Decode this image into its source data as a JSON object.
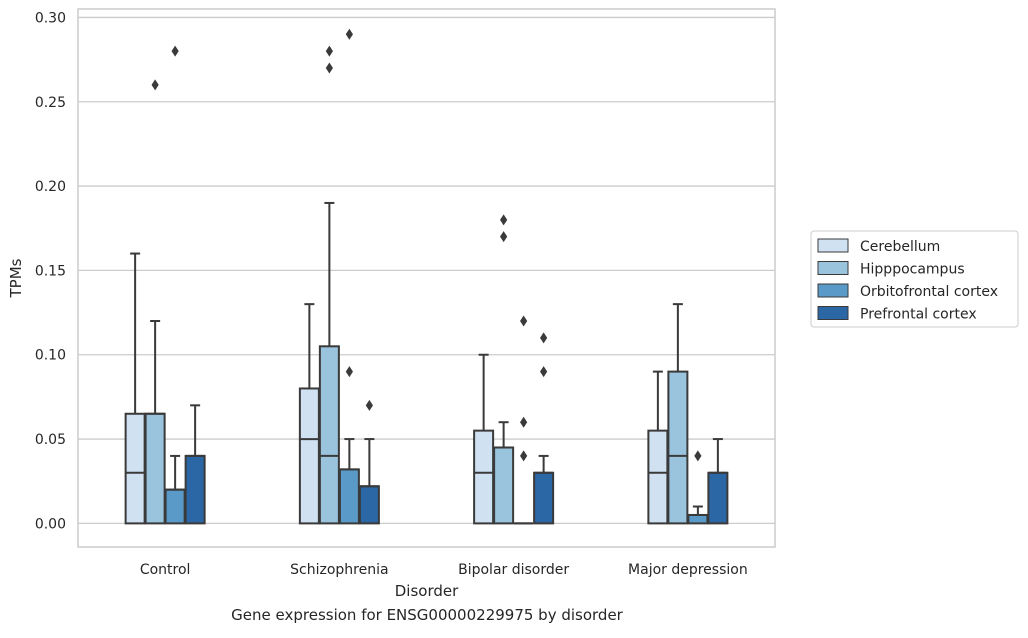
{
  "chart_data": {
    "type": "box",
    "title": "",
    "xlabel": "Disorder",
    "ylabel": "TPMs",
    "caption": "Gene expression for ENSG00000229975 by disorder",
    "ylim": [
      -0.014,
      0.305
    ],
    "yticks": [
      "0.00",
      "0.05",
      "0.10",
      "0.15",
      "0.20",
      "0.25",
      "0.30"
    ],
    "grid": "horizontal",
    "legend_position": "right",
    "categories": [
      "Control",
      "Schizophrenia",
      "Bipolar disorder",
      "Major depression"
    ],
    "series": [
      {
        "name": "Cerebellum",
        "color": "#d0e1f2",
        "boxes": [
          {
            "q1": 0.0,
            "median": 0.03,
            "q3": 0.065,
            "whisker_low": 0.0,
            "whisker_high": 0.16,
            "outliers": []
          },
          {
            "q1": 0.0,
            "median": 0.05,
            "q3": 0.08,
            "whisker_low": 0.0,
            "whisker_high": 0.13,
            "outliers": []
          },
          {
            "q1": 0.0,
            "median": 0.03,
            "q3": 0.055,
            "whisker_low": 0.0,
            "whisker_high": 0.1,
            "outliers": []
          },
          {
            "q1": 0.0,
            "median": 0.03,
            "q3": 0.055,
            "whisker_low": 0.0,
            "whisker_high": 0.09,
            "outliers": []
          }
        ]
      },
      {
        "name": "Hipppocampus",
        "color": "#9ac3de",
        "boxes": [
          {
            "q1": 0.0,
            "median": 0.065,
            "q3": 0.065,
            "whisker_low": 0.0,
            "whisker_high": 0.12,
            "outliers": [
              0.26
            ]
          },
          {
            "q1": 0.0,
            "median": 0.04,
            "q3": 0.105,
            "whisker_low": 0.0,
            "whisker_high": 0.19,
            "outliers": [
              0.27,
              0.28
            ]
          },
          {
            "q1": 0.0,
            "median": 0.045,
            "q3": 0.045,
            "whisker_low": 0.0,
            "whisker_high": 0.06,
            "outliers": [
              0.17,
              0.18
            ]
          },
          {
            "q1": 0.0,
            "median": 0.04,
            "q3": 0.09,
            "whisker_low": 0.0,
            "whisker_high": 0.13,
            "outliers": []
          }
        ]
      },
      {
        "name": "Orbitofrontal cortex",
        "color": "#5a9ac8",
        "boxes": [
          {
            "q1": 0.0,
            "median": 0.02,
            "q3": 0.02,
            "whisker_low": 0.0,
            "whisker_high": 0.04,
            "outliers": [
              0.28
            ]
          },
          {
            "q1": 0.0,
            "median": 0.032,
            "q3": 0.032,
            "whisker_low": 0.0,
            "whisker_high": 0.05,
            "outliers": [
              0.09,
              0.29
            ]
          },
          {
            "q1": 0.0,
            "median": 0.0,
            "q3": 0.0,
            "whisker_low": 0.0,
            "whisker_high": 0.0,
            "outliers": [
              0.04,
              0.06,
              0.12
            ]
          },
          {
            "q1": 0.0,
            "median": 0.005,
            "q3": 0.005,
            "whisker_low": 0.0,
            "whisker_high": 0.01,
            "outliers": [
              0.04
            ]
          }
        ]
      },
      {
        "name": "Prefrontal cortex",
        "color": "#2b67a5",
        "boxes": [
          {
            "q1": 0.0,
            "median": 0.04,
            "q3": 0.04,
            "whisker_low": 0.0,
            "whisker_high": 0.07,
            "outliers": []
          },
          {
            "q1": 0.0,
            "median": 0.022,
            "q3": 0.022,
            "whisker_low": 0.0,
            "whisker_high": 0.05,
            "outliers": [
              0.07
            ]
          },
          {
            "q1": 0.0,
            "median": 0.03,
            "q3": 0.03,
            "whisker_low": 0.0,
            "whisker_high": 0.04,
            "outliers": [
              0.09,
              0.11
            ]
          },
          {
            "q1": 0.0,
            "median": 0.03,
            "q3": 0.03,
            "whisker_low": 0.0,
            "whisker_high": 0.05,
            "outliers": []
          }
        ]
      }
    ]
  }
}
